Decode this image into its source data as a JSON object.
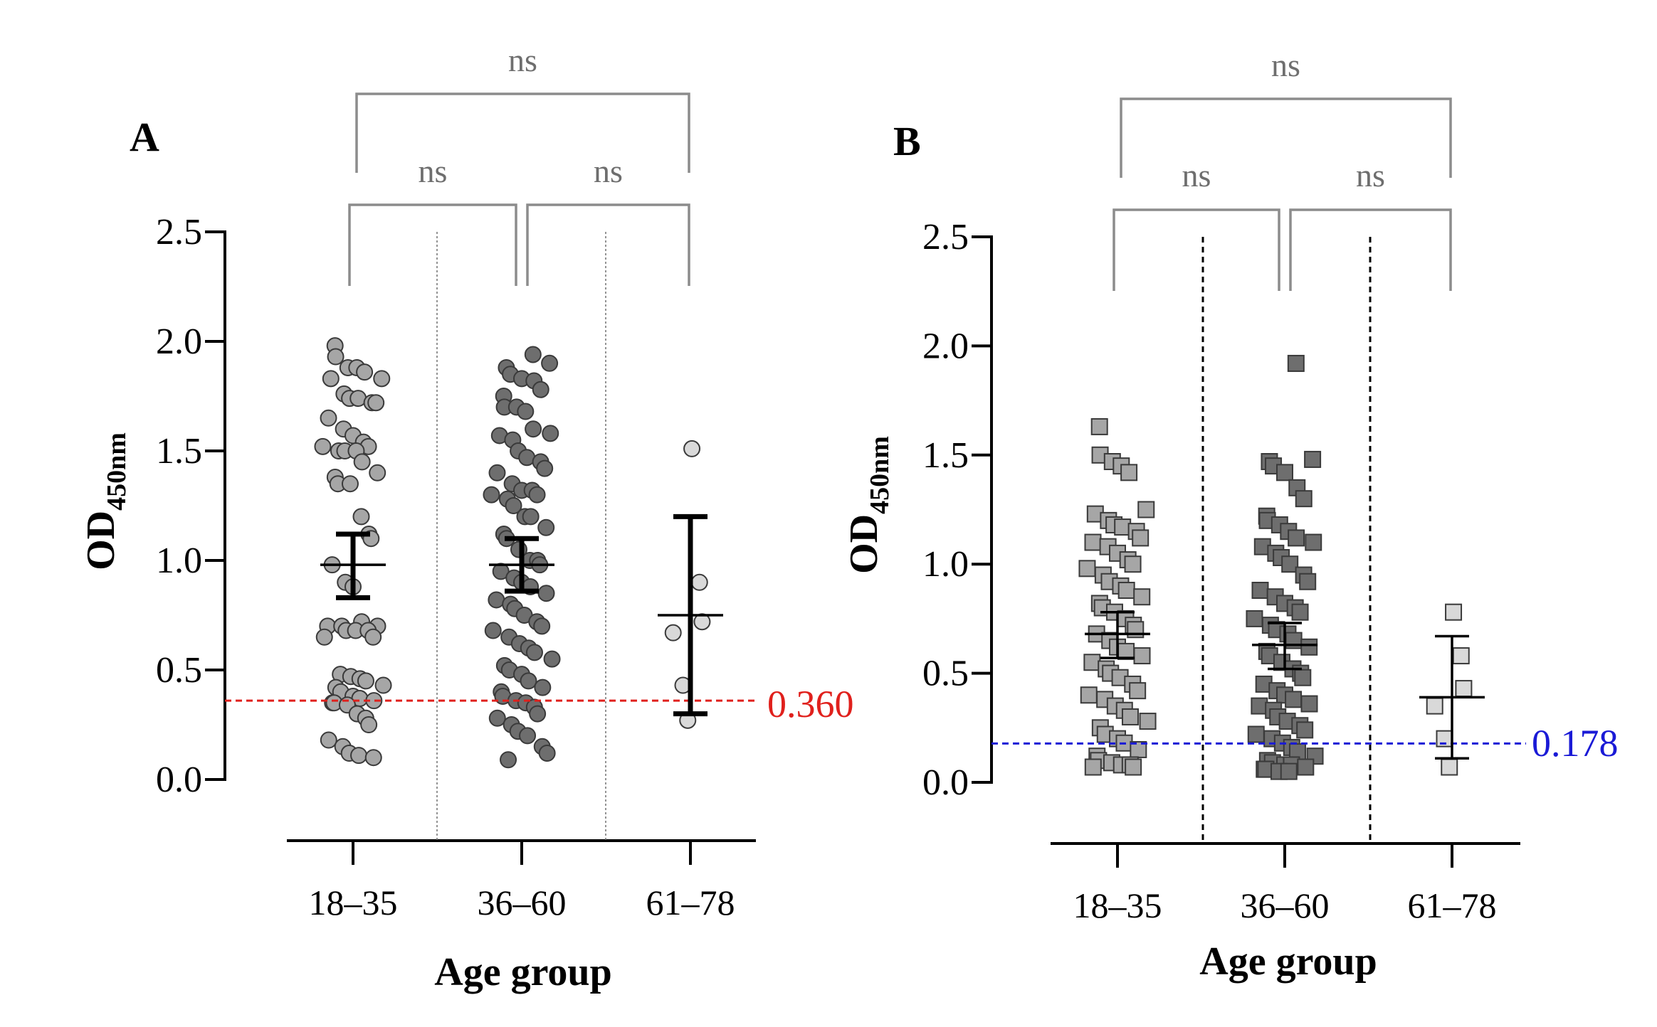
{
  "panels": [
    {
      "label": "A",
      "ylabel_main": "OD",
      "ylabel_sub": "450nm",
      "xlabel": "Age group",
      "cutoff_label": "0.360",
      "sig_labels": [
        "ns",
        "ns",
        "ns"
      ]
    },
    {
      "label": "B",
      "ylabel_main": "OD",
      "ylabel_sub": "450nm",
      "xlabel": "Age group",
      "cutoff_label": "0.178",
      "sig_labels": [
        "ns",
        "ns",
        "ns"
      ]
    }
  ],
  "chart_data": [
    {
      "type": "scatter",
      "panel": "A",
      "xlabel": "Age group",
      "ylabel": "OD450nm",
      "ylim": [
        0,
        2.5
      ],
      "yticks": [
        "0.0",
        "0.5",
        "1.0",
        "1.5",
        "2.0",
        "2.5"
      ],
      "categories": [
        "18–35",
        "36–60",
        "61–78"
      ],
      "marker": "circle",
      "colors": [
        "#a6a6a6",
        "#6e6e6e",
        "#d9d9d9"
      ],
      "cutoff": {
        "value": 0.36,
        "color": "#e0201c"
      },
      "comparisons": [
        {
          "groups": [
            "18–35",
            "36–60"
          ],
          "label": "ns"
        },
        {
          "groups": [
            "36–60",
            "61–78"
          ],
          "label": "ns"
        },
        {
          "groups": [
            "18–35",
            "61–78"
          ],
          "label": "ns"
        }
      ],
      "series": [
        {
          "category": "18–35",
          "mean": 0.98,
          "ci_low": 0.83,
          "ci_high": 1.12,
          "values": [
            1.98,
            1.93,
            1.88,
            1.88,
            1.86,
            1.83,
            1.83,
            1.76,
            1.74,
            1.74,
            1.72,
            1.72,
            1.65,
            1.6,
            1.57,
            1.54,
            1.52,
            1.52,
            1.5,
            1.5,
            1.5,
            1.45,
            1.4,
            1.38,
            1.35,
            1.35,
            1.2,
            1.12,
            1.1,
            0.98,
            0.9,
            0.88,
            0.72,
            0.7,
            0.7,
            0.7,
            0.68,
            0.68,
            0.68,
            0.65,
            0.65,
            0.48,
            0.47,
            0.46,
            0.45,
            0.43,
            0.42,
            0.4,
            0.38,
            0.37,
            0.36,
            0.35,
            0.35,
            0.34,
            0.3,
            0.28,
            0.25,
            0.18,
            0.15,
            0.12,
            0.11,
            0.1
          ]
        },
        {
          "category": "36–60",
          "mean": 0.98,
          "ci_low": 0.86,
          "ci_high": 1.1,
          "values": [
            1.94,
            1.9,
            1.88,
            1.85,
            1.83,
            1.82,
            1.78,
            1.75,
            1.7,
            1.7,
            1.68,
            1.6,
            1.58,
            1.57,
            1.55,
            1.5,
            1.47,
            1.45,
            1.42,
            1.4,
            1.35,
            1.32,
            1.32,
            1.3,
            1.3,
            1.28,
            1.25,
            1.2,
            1.2,
            1.15,
            1.12,
            1.1,
            1.05,
            1.0,
            1.0,
            0.98,
            0.95,
            0.92,
            0.9,
            0.88,
            0.85,
            0.82,
            0.8,
            0.78,
            0.75,
            0.72,
            0.7,
            0.68,
            0.65,
            0.62,
            0.6,
            0.58,
            0.55,
            0.52,
            0.5,
            0.48,
            0.45,
            0.42,
            0.4,
            0.38,
            0.36,
            0.35,
            0.33,
            0.3,
            0.28,
            0.25,
            0.22,
            0.2,
            0.15,
            0.12,
            0.09
          ]
        },
        {
          "category": "61–78",
          "mean": 0.75,
          "ci_low": 0.3,
          "ci_high": 1.2,
          "values": [
            1.51,
            0.9,
            0.72,
            0.67,
            0.43,
            0.27
          ]
        }
      ]
    },
    {
      "type": "scatter",
      "panel": "B",
      "xlabel": "Age group",
      "ylabel": "OD450nm",
      "ylim": [
        0,
        2.5
      ],
      "yticks": [
        "0.0",
        "0.5",
        "1.0",
        "1.5",
        "2.0",
        "2.5"
      ],
      "categories": [
        "18–35",
        "36–60",
        "61–78"
      ],
      "marker": "square",
      "colors": [
        "#a6a6a6",
        "#6e6e6e",
        "#d9d9d9"
      ],
      "cutoff": {
        "value": 0.178,
        "color": "#1a1ad6"
      },
      "comparisons": [
        {
          "groups": [
            "18–35",
            "36–60"
          ],
          "label": "ns"
        },
        {
          "groups": [
            "36–60",
            "61–78"
          ],
          "label": "ns"
        },
        {
          "groups": [
            "18–35",
            "61–78"
          ],
          "label": "ns"
        }
      ],
      "series": [
        {
          "category": "18–35",
          "mean": 0.68,
          "ci_low": 0.57,
          "ci_high": 0.78,
          "values": [
            1.63,
            1.5,
            1.47,
            1.45,
            1.42,
            1.25,
            1.23,
            1.2,
            1.18,
            1.17,
            1.15,
            1.12,
            1.1,
            1.08,
            1.05,
            1.02,
            1.0,
            0.98,
            0.95,
            0.92,
            0.9,
            0.88,
            0.85,
            0.82,
            0.8,
            0.78,
            0.75,
            0.72,
            0.7,
            0.68,
            0.65,
            0.62,
            0.6,
            0.58,
            0.55,
            0.52,
            0.5,
            0.48,
            0.45,
            0.42,
            0.4,
            0.38,
            0.35,
            0.33,
            0.3,
            0.28,
            0.25,
            0.22,
            0.2,
            0.18,
            0.15,
            0.12,
            0.1,
            0.09,
            0.08,
            0.08,
            0.07,
            0.07
          ]
        },
        {
          "category": "36–60",
          "mean": 0.63,
          "ci_low": 0.52,
          "ci_high": 0.73,
          "values": [
            1.92,
            1.48,
            1.47,
            1.45,
            1.42,
            1.35,
            1.3,
            1.22,
            1.2,
            1.18,
            1.15,
            1.12,
            1.1,
            1.08,
            1.05,
            1.03,
            1.0,
            0.95,
            0.92,
            0.88,
            0.85,
            0.82,
            0.8,
            0.78,
            0.75,
            0.72,
            0.7,
            0.68,
            0.65,
            0.62,
            0.6,
            0.58,
            0.55,
            0.52,
            0.5,
            0.48,
            0.45,
            0.42,
            0.4,
            0.38,
            0.36,
            0.35,
            0.33,
            0.3,
            0.28,
            0.26,
            0.24,
            0.22,
            0.2,
            0.18,
            0.16,
            0.14,
            0.12,
            0.1,
            0.09,
            0.08,
            0.08,
            0.07,
            0.06,
            0.06,
            0.05,
            0.05
          ]
        },
        {
          "category": "61–78",
          "mean": 0.39,
          "ci_low": 0.11,
          "ci_high": 0.67,
          "values": [
            0.78,
            0.58,
            0.43,
            0.35,
            0.2,
            0.07
          ]
        }
      ]
    }
  ]
}
